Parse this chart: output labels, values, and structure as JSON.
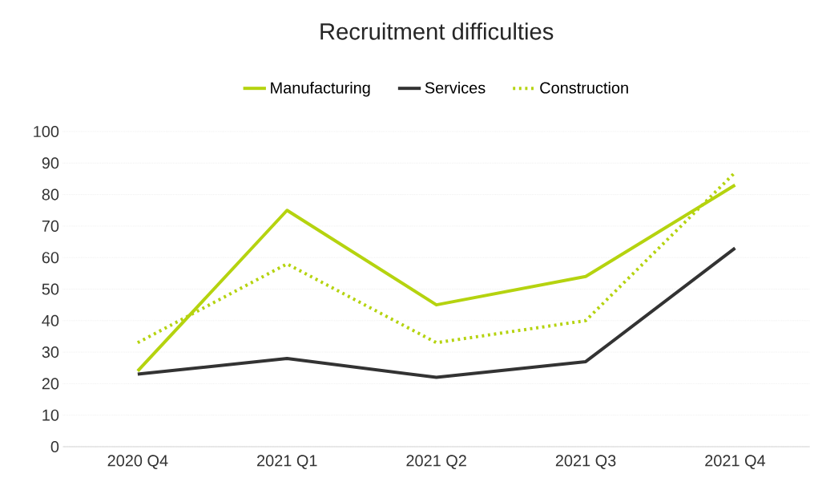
{
  "chart_data": {
    "type": "line",
    "title": "Recruitment difficulties",
    "categories": [
      "2020 Q4",
      "2021 Q1",
      "2021 Q2",
      "2021 Q3",
      "2021 Q4"
    ],
    "series": [
      {
        "name": "Manufacturing",
        "color": "#b5d30f",
        "values": [
          24,
          75,
          45,
          54,
          83
        ],
        "line_style": "solid"
      },
      {
        "name": "Services",
        "color": "#333333",
        "values": [
          23,
          28,
          22,
          27,
          63
        ],
        "line_style": "solid"
      },
      {
        "name": "Construction",
        "color": "#b5d30f",
        "values": [
          33,
          58,
          33,
          40,
          87
        ],
        "line_style": "dotted"
      }
    ],
    "ylim": [
      0,
      100
    ],
    "yticks": [
      0,
      10,
      20,
      30,
      40,
      50,
      60,
      70,
      80,
      90,
      100
    ],
    "grid": "y",
    "legend": "top"
  }
}
